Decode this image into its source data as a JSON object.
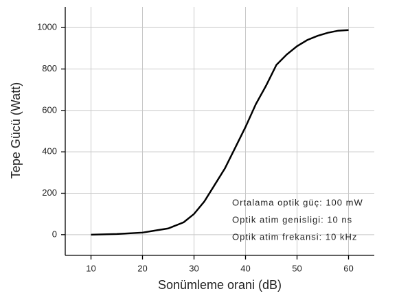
{
  "chart_data": {
    "type": "line",
    "x_label": "Sonümleme orani (dB)",
    "y_label": "Tepe Gücü (Watt)",
    "annotations": [
      "Ortalama optik güç: 100 mW",
      "Optik atim genisligi: 10 ns",
      "Optik atim frekansi: 10 kHz"
    ],
    "x": [
      10,
      15,
      20,
      22,
      25,
      28,
      30,
      32,
      34,
      36,
      38,
      40,
      42,
      44,
      46,
      48,
      50,
      52,
      54,
      56,
      58,
      60
    ],
    "series": [
      {
        "color": "#000000",
        "values": [
          0,
          3,
          10,
          18,
          30,
          60,
          100,
          160,
          240,
          320,
          420,
          520,
          630,
          720,
          820,
          870,
          910,
          940,
          960,
          975,
          985,
          988
        ]
      }
    ],
    "xlim": [
      5,
      65
    ],
    "xticks": [
      10,
      20,
      30,
      40,
      50,
      60
    ],
    "ylim": [
      -100,
      1100
    ],
    "yticks": [
      0,
      200,
      400,
      600,
      800,
      1000
    ],
    "grid": true
  }
}
